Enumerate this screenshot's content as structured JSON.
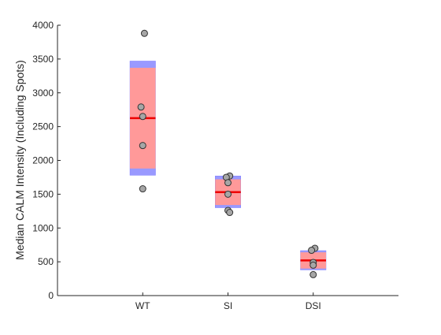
{
  "chart_data": {
    "type": "scatter",
    "title": "",
    "xlabel": "",
    "ylabel": "Median CALM Intensity (Including Spots)",
    "categories": [
      "WT",
      "SI",
      "DSI"
    ],
    "ylim": [
      0,
      4000
    ],
    "yticks": [
      0,
      500,
      1000,
      1500,
      2000,
      2500,
      3000,
      3500,
      4000
    ],
    "xlim": [
      0,
      4
    ],
    "grid": false,
    "groups": [
      {
        "category": "WT",
        "points": [
          3880,
          2790,
          2650,
          2220,
          1580
        ],
        "mean": 2625,
        "sd_band": [
          1880,
          3370
        ],
        "ci_band": [
          1780,
          3470
        ]
      },
      {
        "category": "SI",
        "points": [
          1770,
          1750,
          1670,
          1500,
          1260,
          1230
        ],
        "mean": 1530,
        "sd_band": [
          1340,
          1720
        ],
        "ci_band": [
          1300,
          1770
        ]
      },
      {
        "category": "DSI",
        "points": [
          700,
          670,
          490,
          450,
          310
        ],
        "mean": 520,
        "sd_band": [
          400,
          640
        ],
        "ci_band": [
          380,
          665
        ]
      }
    ],
    "colors": {
      "sd_fill": "#ff9999",
      "ci_fill": "#9999ff",
      "mean_line": "#ee0000",
      "point_fill": "#a6a6a6",
      "point_edge": "#333333",
      "axis": "#262626"
    }
  }
}
